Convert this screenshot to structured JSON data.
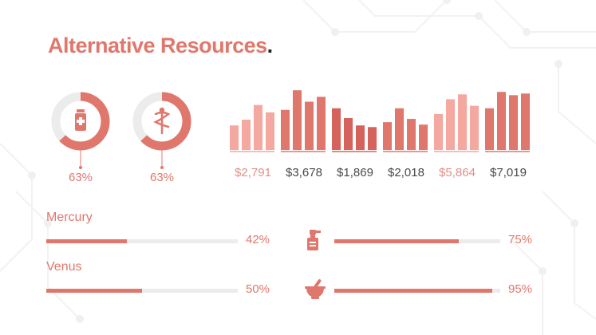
{
  "slide": {
    "title": "Alternative Resources",
    "title_period": "."
  },
  "colors": {
    "accent": "#e0776c",
    "accent_dark": "#d5635b",
    "accent_light": "#f4a8a0",
    "track": "#ececec",
    "text_dark": "#4a4a4a"
  },
  "donuts": [
    {
      "icon": "medicine-bottle-icon",
      "value_pct": 63,
      "label": "63%"
    },
    {
      "icon": "rod-of-asclepius-icon",
      "value_pct": 63,
      "label": "63%"
    }
  ],
  "chart_data": {
    "type": "bar",
    "groups": [
      {
        "label": "$2,791",
        "color": "#f4a8a0",
        "values": [
          30,
          37,
          55,
          46
        ]
      },
      {
        "label": "$3,678",
        "color": "#e0776c",
        "values": [
          49,
          73,
          59,
          65
        ]
      },
      {
        "label": "$1,869",
        "color": "#d5635b",
        "values": [
          51,
          39,
          30,
          28
        ]
      },
      {
        "label": "$2,018",
        "color": "#e0776c",
        "values": [
          34,
          51,
          38,
          31
        ]
      },
      {
        "label": "$5,864",
        "color": "#f4a8a0",
        "values": [
          44,
          62,
          68,
          54
        ]
      },
      {
        "label": "$7,019",
        "color": "#e0776c",
        "values": [
          51,
          71,
          67,
          69
        ]
      }
    ],
    "ylim": [
      0,
      80
    ]
  },
  "progress": [
    {
      "label": "Mercury",
      "icon": "",
      "value_pct": 42,
      "pct_label": "42%"
    },
    {
      "label": "",
      "icon": "spray-bottle-icon",
      "value_pct": 75,
      "pct_label": "75%"
    },
    {
      "label": "Venus",
      "icon": "",
      "value_pct": 50,
      "pct_label": "50%"
    },
    {
      "label": "",
      "icon": "mortar-pestle-icon",
      "value_pct": 95,
      "pct_label": "95%"
    }
  ]
}
